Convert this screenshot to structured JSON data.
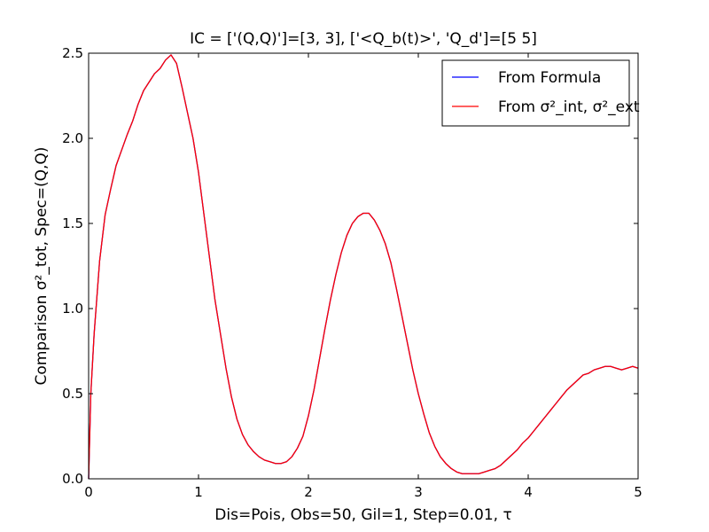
{
  "chart_data": {
    "type": "line",
    "title": "IC = ['(Q,Q)']=[3, 3], ['<Q_b(t)>', 'Q_d']=[5 5]",
    "xlabel": "Dis=Pois, Obs=50, Gil=1, Step=0.01, τ",
    "ylabel": "Comparison σ²_tot, Spec=(Q,Q)",
    "xlim": [
      0,
      5
    ],
    "ylim": [
      0,
      2.5
    ],
    "xticks": [
      "0",
      "1",
      "2",
      "3",
      "4",
      "5"
    ],
    "yticks": [
      "0.0",
      "0.5",
      "1.0",
      "1.5",
      "2.0",
      "2.5"
    ],
    "grid": false,
    "legend_position": "top-right",
    "series": [
      {
        "name": "From Formula",
        "color": "#0000ff",
        "x": [
          0,
          0.02,
          0.05,
          0.1,
          0.15,
          0.2,
          0.25,
          0.3,
          0.35,
          0.4,
          0.45,
          0.5,
          0.55,
          0.6,
          0.65,
          0.7,
          0.75,
          0.8,
          0.85,
          0.9,
          0.95,
          1.0,
          1.05,
          1.1,
          1.15,
          1.2,
          1.25,
          1.3,
          1.35,
          1.4,
          1.45,
          1.5,
          1.55,
          1.6,
          1.65,
          1.7,
          1.75,
          1.8,
          1.85,
          1.9,
          1.95,
          2.0,
          2.05,
          2.1,
          2.15,
          2.2,
          2.25,
          2.3,
          2.35,
          2.4,
          2.45,
          2.5,
          2.55,
          2.6,
          2.65,
          2.7,
          2.75,
          2.8,
          2.85,
          2.9,
          2.95,
          3.0,
          3.05,
          3.1,
          3.15,
          3.2,
          3.25,
          3.3,
          3.35,
          3.4,
          3.45,
          3.5,
          3.55,
          3.6,
          3.65,
          3.7,
          3.75,
          3.8,
          3.85,
          3.9,
          3.95,
          4.0,
          4.05,
          4.1,
          4.15,
          4.2,
          4.25,
          4.3,
          4.35,
          4.4,
          4.45,
          4.5,
          4.55,
          4.6,
          4.65,
          4.7,
          4.75,
          4.8,
          4.85,
          4.9,
          4.95,
          5.0
        ],
        "y": [
          0.0,
          0.5,
          0.85,
          1.28,
          1.55,
          1.7,
          1.84,
          1.93,
          2.02,
          2.1,
          2.2,
          2.28,
          2.33,
          2.38,
          2.41,
          2.46,
          2.49,
          2.44,
          2.3,
          2.15,
          2.0,
          1.8,
          1.55,
          1.3,
          1.05,
          0.85,
          0.65,
          0.48,
          0.35,
          0.26,
          0.2,
          0.16,
          0.13,
          0.11,
          0.1,
          0.09,
          0.09,
          0.1,
          0.13,
          0.18,
          0.25,
          0.37,
          0.52,
          0.7,
          0.88,
          1.05,
          1.2,
          1.33,
          1.43,
          1.5,
          1.54,
          1.56,
          1.56,
          1.52,
          1.46,
          1.38,
          1.27,
          1.12,
          0.96,
          0.8,
          0.64,
          0.5,
          0.38,
          0.27,
          0.19,
          0.13,
          0.09,
          0.06,
          0.04,
          0.03,
          0.03,
          0.03,
          0.03,
          0.04,
          0.05,
          0.06,
          0.08,
          0.11,
          0.14,
          0.17,
          0.21,
          0.24,
          0.28,
          0.32,
          0.36,
          0.4,
          0.44,
          0.48,
          0.52,
          0.55,
          0.58,
          0.61,
          0.62,
          0.64,
          0.65,
          0.66,
          0.66,
          0.65,
          0.64,
          0.65,
          0.66,
          0.65
        ]
      },
      {
        "name": "From σ²_int, σ²_ext",
        "color": "#ff0000",
        "x": [
          0,
          0.02,
          0.05,
          0.1,
          0.15,
          0.2,
          0.25,
          0.3,
          0.35,
          0.4,
          0.45,
          0.5,
          0.55,
          0.6,
          0.65,
          0.7,
          0.75,
          0.8,
          0.85,
          0.9,
          0.95,
          1.0,
          1.05,
          1.1,
          1.15,
          1.2,
          1.25,
          1.3,
          1.35,
          1.4,
          1.45,
          1.5,
          1.55,
          1.6,
          1.65,
          1.7,
          1.75,
          1.8,
          1.85,
          1.9,
          1.95,
          2.0,
          2.05,
          2.1,
          2.15,
          2.2,
          2.25,
          2.3,
          2.35,
          2.4,
          2.45,
          2.5,
          2.55,
          2.6,
          2.65,
          2.7,
          2.75,
          2.8,
          2.85,
          2.9,
          2.95,
          3.0,
          3.05,
          3.1,
          3.15,
          3.2,
          3.25,
          3.3,
          3.35,
          3.4,
          3.45,
          3.5,
          3.55,
          3.6,
          3.65,
          3.7,
          3.75,
          3.8,
          3.85,
          3.9,
          3.95,
          4.0,
          4.05,
          4.1,
          4.15,
          4.2,
          4.25,
          4.3,
          4.35,
          4.4,
          4.45,
          4.5,
          4.55,
          4.6,
          4.65,
          4.7,
          4.75,
          4.8,
          4.85,
          4.9,
          4.95,
          5.0
        ],
        "y": [
          0.0,
          0.5,
          0.85,
          1.28,
          1.55,
          1.7,
          1.84,
          1.93,
          2.02,
          2.1,
          2.2,
          2.28,
          2.33,
          2.38,
          2.41,
          2.46,
          2.49,
          2.44,
          2.3,
          2.15,
          2.0,
          1.8,
          1.55,
          1.3,
          1.05,
          0.85,
          0.65,
          0.48,
          0.35,
          0.26,
          0.2,
          0.16,
          0.13,
          0.11,
          0.1,
          0.09,
          0.09,
          0.1,
          0.13,
          0.18,
          0.25,
          0.37,
          0.52,
          0.7,
          0.88,
          1.05,
          1.2,
          1.33,
          1.43,
          1.5,
          1.54,
          1.56,
          1.56,
          1.52,
          1.46,
          1.38,
          1.27,
          1.12,
          0.96,
          0.8,
          0.64,
          0.5,
          0.38,
          0.27,
          0.19,
          0.13,
          0.09,
          0.06,
          0.04,
          0.03,
          0.03,
          0.03,
          0.03,
          0.04,
          0.05,
          0.06,
          0.08,
          0.11,
          0.14,
          0.17,
          0.21,
          0.24,
          0.28,
          0.32,
          0.36,
          0.4,
          0.44,
          0.48,
          0.52,
          0.55,
          0.58,
          0.61,
          0.62,
          0.64,
          0.65,
          0.66,
          0.66,
          0.65,
          0.64,
          0.65,
          0.66,
          0.65
        ]
      }
    ]
  }
}
